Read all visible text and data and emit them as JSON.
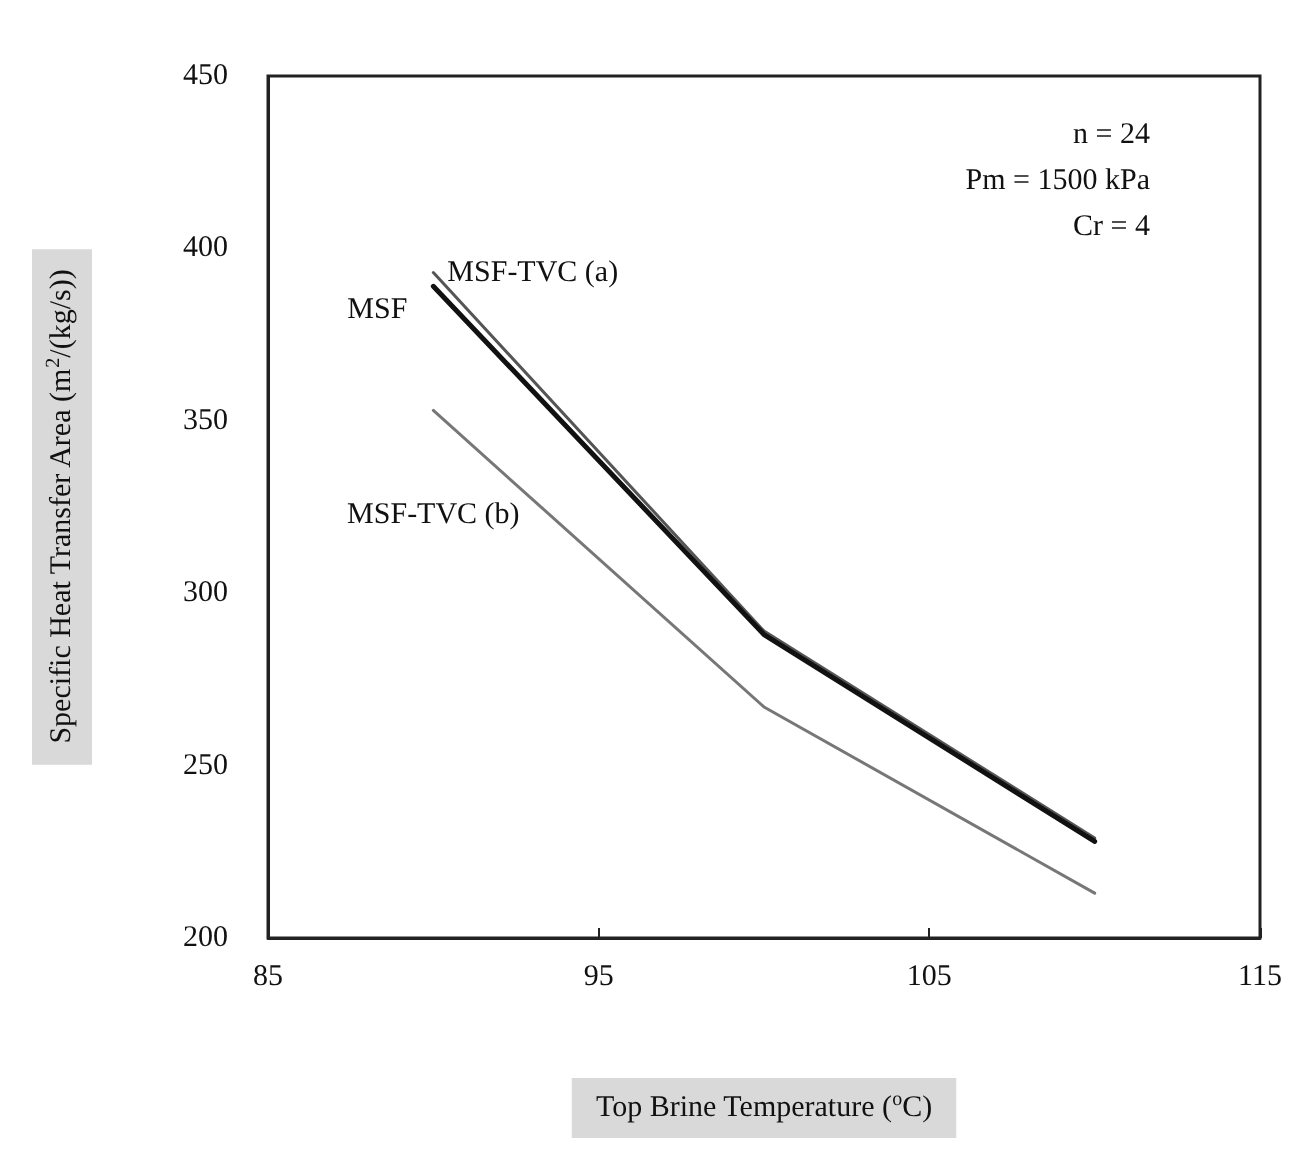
{
  "chart_data": {
    "type": "line",
    "xlabel": "Top Brine Temperature ($^{o}$C)",
    "ylabel": "Specific Heat Transfer Area (m$^{2}$/(kg/s))",
    "x": [
      90,
      100,
      110
    ],
    "series": [
      {
        "name": "MSF-TVC (a)",
        "color": "#555555",
        "values": [
          393,
          289,
          229
        ]
      },
      {
        "name": "MSF",
        "color": "#111111",
        "values": [
          389,
          288,
          228
        ]
      },
      {
        "name": "MSF-TVC (b)",
        "color": "#777777",
        "values": [
          353,
          267,
          213
        ]
      }
    ],
    "xlim": [
      85,
      115
    ],
    "xticks": [
      85,
      95,
      105,
      115
    ],
    "ylim": [
      200,
      450
    ],
    "yticks": [
      200,
      250,
      300,
      350,
      400,
      450
    ],
    "grid": false,
    "legend": false,
    "marker": "none",
    "line_style": "solid",
    "annotations": [
      "n = 24",
      "Pm = 1500 kPa",
      "Cr = 4"
    ]
  }
}
